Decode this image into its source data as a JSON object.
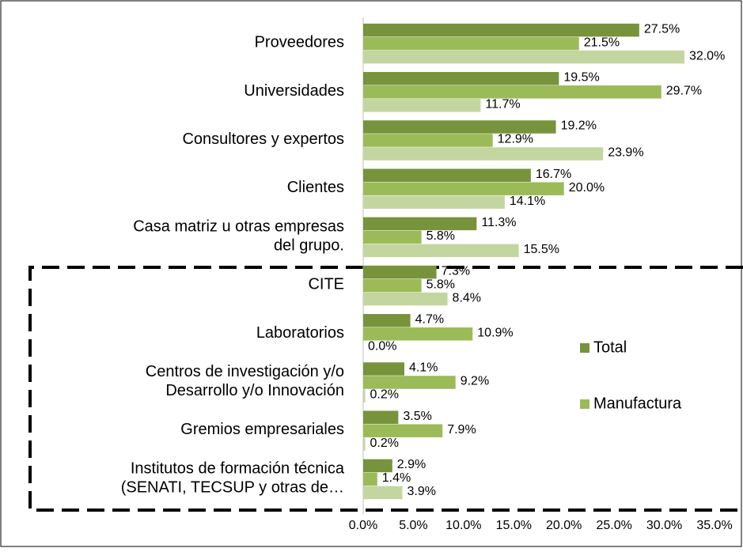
{
  "chart_data": {
    "type": "hbar",
    "categories": [
      "Proveedores",
      "Universidades",
      "Consultores y expertos",
      "Clientes",
      "Casa matriz u otras empresas\ndel grupo.",
      "CITE",
      "Laboratorios",
      "Centros de investigación y/o\nDesarrollo y/o Innovación",
      "Gremios empresariales",
      "Institutos de formación técnica\n(SENATI, TECSUP y otras de…"
    ],
    "series": [
      {
        "name": "Total",
        "color": "#77933c",
        "values": [
          27.5,
          19.5,
          19.2,
          16.7,
          11.3,
          7.3,
          4.7,
          4.1,
          3.5,
          2.9
        ],
        "value_labels": [
          "27.5%",
          "19.5%",
          "19.2%",
          "16.7%",
          "11.3%",
          "7.3%",
          "4.7%",
          "4.1%",
          "3.5%",
          "2.9%"
        ]
      },
      {
        "name": "Manufactura",
        "color": "#9bbb59",
        "values": [
          21.5,
          29.7,
          12.9,
          20.0,
          5.8,
          5.8,
          10.9,
          9.2,
          7.9,
          1.4
        ],
        "value_labels": [
          "21.5%",
          "29.7%",
          "12.9%",
          "20.0%",
          "5.8%",
          "5.8%",
          "10.9%",
          "9.2%",
          "7.9%",
          "1.4%"
        ]
      },
      {
        "color": "#c4d6a0",
        "values": [
          32.0,
          11.7,
          23.9,
          14.1,
          15.5,
          8.4,
          0.0,
          0.2,
          0.2,
          3.9
        ],
        "value_labels": [
          "32.0%",
          "11.7%",
          "23.9%",
          "14.1%",
          "15.5%",
          "8.4%",
          "0.0%",
          "0.2%",
          "0.2%",
          "3.9%"
        ]
      }
    ],
    "xlim": [
      0,
      35
    ],
    "xticks": [
      {
        "value": 0,
        "label": "0.0%"
      },
      {
        "value": 5,
        "label": "5.0%"
      },
      {
        "value": 10,
        "label": "10.0%"
      },
      {
        "value": 15,
        "label": "15.0%"
      },
      {
        "value": 20,
        "label": "20.0%"
      },
      {
        "value": 25,
        "label": "25.0%"
      },
      {
        "value": 30,
        "label": "30.0%"
      },
      {
        "value": 35,
        "label": "35.0%"
      }
    ],
    "legend": "right"
  }
}
